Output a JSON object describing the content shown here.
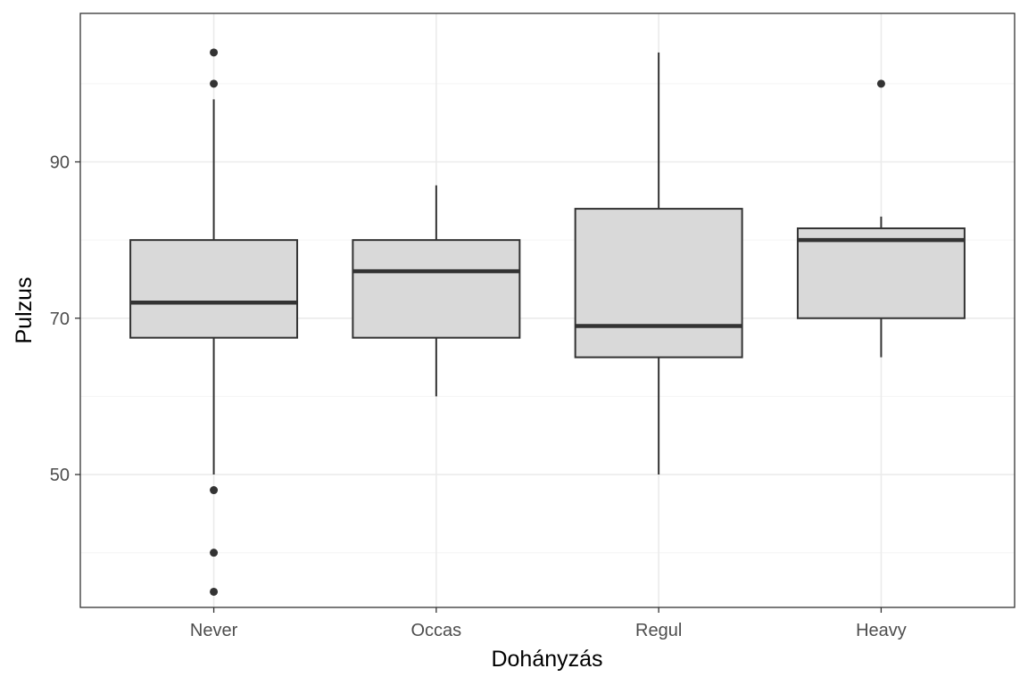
{
  "chart_data": {
    "type": "boxplot",
    "xlabel": "Dohányzás",
    "ylabel": "Pulzus",
    "categories": [
      "Never",
      "Occas",
      "Regul",
      "Heavy"
    ],
    "ylim": [
      33,
      109
    ],
    "yticks": [
      50,
      70,
      90
    ],
    "ygrid_minor": [
      40,
      60,
      80,
      100
    ],
    "grid": true,
    "boxes": [
      {
        "category": "Never",
        "whisker_low": 50,
        "q1": 67.5,
        "median": 72,
        "q3": 80,
        "whisker_high": 98,
        "outliers": [
          104,
          100,
          48,
          40,
          35
        ]
      },
      {
        "category": "Occas",
        "whisker_low": 60,
        "q1": 67.5,
        "median": 76,
        "q3": 80,
        "whisker_high": 87,
        "outliers": []
      },
      {
        "category": "Regul",
        "whisker_low": 50,
        "q1": 65,
        "median": 69,
        "q3": 84,
        "whisker_high": 104,
        "outliers": []
      },
      {
        "category": "Heavy",
        "whisker_low": 65,
        "q1": 70,
        "median": 80,
        "q3": 81.5,
        "whisker_high": 83,
        "outliers": [
          100
        ]
      }
    ],
    "colors": {
      "box_fill": "#d9d9d9",
      "box_line": "#333333",
      "grid_major": "#ebebeb",
      "grid_minor": "#f5f5f5",
      "panel_border": "#333333"
    }
  }
}
